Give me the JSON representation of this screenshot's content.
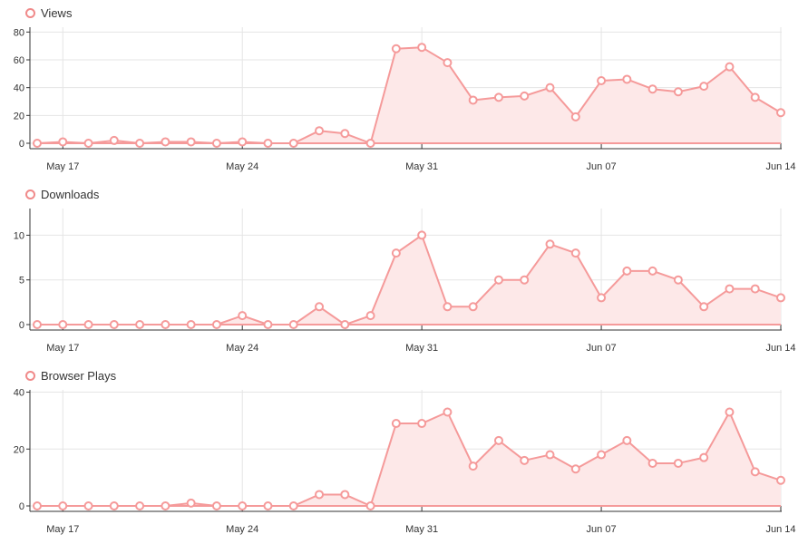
{
  "colors": {
    "line": "#f59a9a",
    "fill": "#fde8e8",
    "grid": "#e5e5e5",
    "axis": "#333333",
    "point_fill": "#ffffff"
  },
  "chart_data": [
    {
      "type": "area",
      "title": "Views",
      "legend": "top-left",
      "grid": true,
      "x_ticks": [
        "May 17",
        "May 24",
        "May 31",
        "Jun 07",
        "Jun 14"
      ],
      "x": [
        "May 16",
        "May 17",
        "May 18",
        "May 19",
        "May 20",
        "May 21",
        "May 22",
        "May 23",
        "May 24",
        "May 25",
        "May 26",
        "May 27",
        "May 28",
        "May 29",
        "May 30",
        "May 31",
        "Jun 01",
        "Jun 02",
        "Jun 03",
        "Jun 04",
        "Jun 05",
        "Jun 06",
        "Jun 07",
        "Jun 08",
        "Jun 09",
        "Jun 10",
        "Jun 11",
        "Jun 12",
        "Jun 13",
        "Jun 14"
      ],
      "y_ticks": [
        "0",
        "20",
        "40",
        "60",
        "80"
      ],
      "ylim": [
        0,
        90
      ],
      "series": [
        {
          "values": [
            0,
            1,
            0,
            2,
            0,
            1,
            1,
            0,
            1,
            0,
            0,
            9,
            7,
            0,
            68,
            69,
            58,
            31,
            33,
            34,
            40,
            19,
            45,
            46,
            39,
            37,
            41,
            55,
            33,
            22
          ]
        }
      ]
    },
    {
      "type": "area",
      "title": "Downloads",
      "legend": "top-left",
      "grid": true,
      "x_ticks": [
        "May 17",
        "May 24",
        "May 31",
        "Jun 07",
        "Jun 14"
      ],
      "x": [
        "May 16",
        "May 17",
        "May 18",
        "May 19",
        "May 20",
        "May 21",
        "May 22",
        "May 23",
        "May 24",
        "May 25",
        "May 26",
        "May 27",
        "May 28",
        "May 29",
        "May 30",
        "May 31",
        "Jun 01",
        "Jun 02",
        "Jun 03",
        "Jun 04",
        "Jun 05",
        "Jun 06",
        "Jun 07",
        "Jun 08",
        "Jun 09",
        "Jun 10",
        "Jun 11",
        "Jun 12",
        "Jun 13",
        "Jun 14"
      ],
      "y_ticks": [
        "0",
        "5",
        "10"
      ],
      "ylim": [
        0,
        14
      ],
      "series": [
        {
          "values": [
            0,
            0,
            0,
            0,
            0,
            0,
            0,
            0,
            1,
            0,
            0,
            2,
            0,
            1,
            8,
            10,
            2,
            2,
            5,
            5,
            9,
            8,
            3,
            6,
            6,
            5,
            2,
            4,
            4,
            3
          ]
        }
      ]
    },
    {
      "type": "area",
      "title": "Browser Plays",
      "legend": "top-left",
      "grid": true,
      "x_ticks": [
        "May 17",
        "May 24",
        "May 31",
        "Jun 07",
        "Jun 14"
      ],
      "x": [
        "May 16",
        "May 17",
        "May 18",
        "May 19",
        "May 20",
        "May 21",
        "May 22",
        "May 23",
        "May 24",
        "May 25",
        "May 26",
        "May 27",
        "May 28",
        "May 29",
        "May 30",
        "May 31",
        "Jun 01",
        "Jun 02",
        "Jun 03",
        "Jun 04",
        "Jun 05",
        "Jun 06",
        "Jun 07",
        "Jun 08",
        "Jun 09",
        "Jun 10",
        "Jun 11",
        "Jun 12",
        "Jun 13",
        "Jun 14"
      ],
      "y_ticks": [
        "0",
        "20",
        "40"
      ],
      "ylim": [
        0,
        44
      ],
      "series": [
        {
          "values": [
            0,
            0,
            0,
            0,
            0,
            0,
            1,
            0,
            0,
            0,
            0,
            4,
            4,
            0,
            29,
            29,
            33,
            14,
            23,
            16,
            18,
            13,
            18,
            23,
            15,
            15,
            17,
            33,
            12,
            9
          ]
        }
      ]
    }
  ]
}
